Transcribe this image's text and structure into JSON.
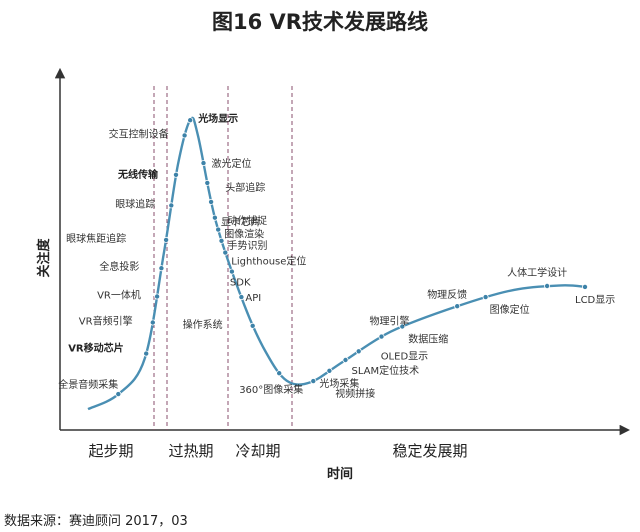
{
  "page": {
    "title": "图16 VR技术发展路线",
    "source": "数据来源：赛迪顾问 2017，03"
  },
  "chart_data": {
    "type": "line",
    "title": "图16 VR技术发展路线",
    "xlabel": "时间",
    "ylabel": "关注度",
    "phases": [
      "起步期",
      "过热期",
      "冷却期",
      "稳定发展期"
    ],
    "grid": false,
    "line_color": "#4a8fb3",
    "curve": [
      [
        0.0,
        0.03
      ],
      [
        3.2,
        0.08
      ],
      [
        6.0,
        0.2
      ],
      [
        8.0,
        0.55
      ],
      [
        9.5,
        0.85
      ],
      [
        10.8,
        1.0
      ],
      [
        11.6,
        0.95
      ],
      [
        13.5,
        0.66
      ],
      [
        16.5,
        0.38
      ],
      [
        18.8,
        0.22
      ],
      [
        21.0,
        0.125
      ],
      [
        23.5,
        0.12
      ],
      [
        27.0,
        0.19
      ],
      [
        32.0,
        0.29
      ],
      [
        39.0,
        0.375
      ],
      [
        45.0,
        0.43
      ],
      [
        50.0,
        0.445
      ],
      [
        52.5,
        0.44
      ]
    ],
    "points": [
      {
        "label": "全景音频采集",
        "x": 3.2,
        "bold": false
      },
      {
        "label": "VR移动芯片",
        "x": 6.15,
        "bold": true
      },
      {
        "label": "VR音频引擎",
        "x": 6.85,
        "bold": false
      },
      {
        "label": "VR一体机",
        "x": 7.3,
        "bold": false
      },
      {
        "label": "全息投影",
        "x": 7.75,
        "bold": false
      },
      {
        "label": "眼球焦距追踪",
        "x": 8.25,
        "bold": false
      },
      {
        "label": "眼球追踪",
        "x": 8.8,
        "bold": false
      },
      {
        "label": "无线传输",
        "x": 9.3,
        "bold": true
      },
      {
        "label": "交互控制设备",
        "x": 10.2,
        "bold": false
      },
      {
        "label": "光场显示",
        "x": 10.8,
        "bold": true
      },
      {
        "label": "激光定位",
        "x": 12.2,
        "bold": false
      },
      {
        "label": "头部追踪",
        "x": 12.6,
        "bold": false
      },
      {
        "label": "动作捕捉",
        "x": 13.0,
        "bold": false
      },
      {
        "label": "显卡芯片",
        "x": 13.4,
        "bold": false
      },
      {
        "label": "图像渲染",
        "x": 13.75,
        "bold": false
      },
      {
        "label": "手势识别",
        "x": 14.1,
        "bold": false
      },
      {
        "label": "Lighthouse定位",
        "x": 14.5,
        "bold": false
      },
      {
        "label": "SDK",
        "x": 15.2,
        "bold": false
      },
      {
        "label": "API",
        "x": 16.2,
        "bold": false
      },
      {
        "label": "操作系统",
        "x": 17.4,
        "bold": false
      },
      {
        "label": "360°图像采集",
        "x": 20.2,
        "bold": false
      },
      {
        "label": "视频拼接",
        "x": 23.8,
        "bold": false
      },
      {
        "label": "光场采集",
        "x": 25.5,
        "bold": false
      },
      {
        "label": "SLAM定位技术",
        "x": 27.2,
        "bold": false
      },
      {
        "label": "OLED显示",
        "x": 28.6,
        "bold": false
      },
      {
        "label": "物理引擎",
        "x": 31.0,
        "bold": false
      },
      {
        "label": "数据压缩",
        "x": 33.2,
        "bold": false
      },
      {
        "label": "物理反馈",
        "x": 39.0,
        "bold": false
      },
      {
        "label": "图像定位",
        "x": 42.0,
        "bold": false
      },
      {
        "label": "人体工学设计",
        "x": 48.5,
        "bold": false
      },
      {
        "label": "LCD显示",
        "x": 52.5,
        "bold": false
      }
    ],
    "x_range": [
      0,
      55
    ],
    "y_range": [
      0,
      1.05
    ]
  }
}
